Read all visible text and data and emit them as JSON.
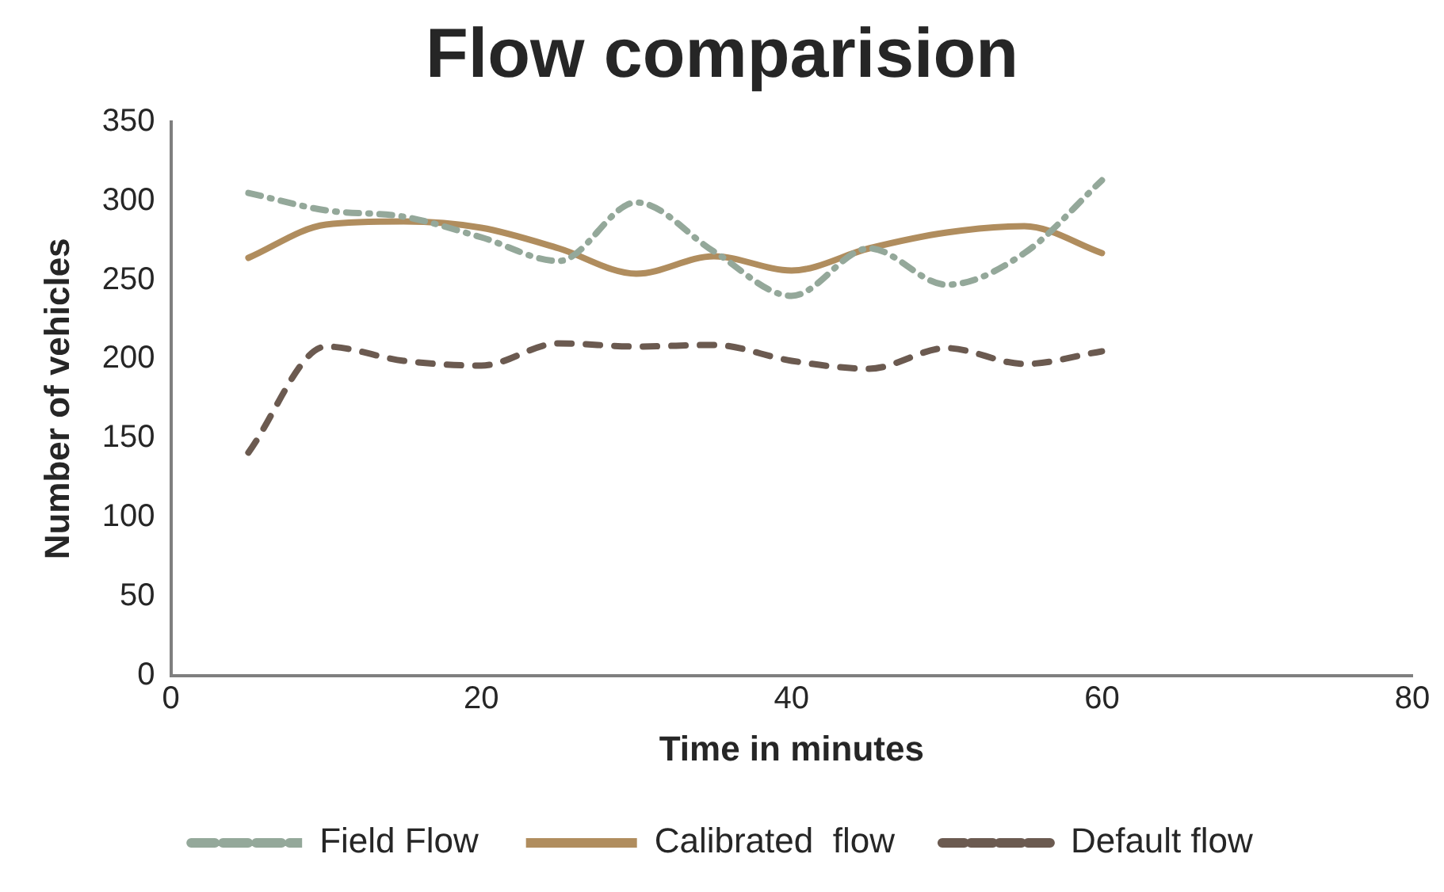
{
  "chart_data": {
    "type": "line",
    "title": "Flow comparision",
    "xlabel": "Time in minutes",
    "ylabel": "Number of vehicles",
    "x": [
      5,
      10,
      15,
      20,
      25,
      30,
      35,
      40,
      45,
      50,
      55,
      60
    ],
    "series": [
      {
        "name": "Field Flow",
        "color": "#94a89a",
        "line_style": "dashed",
        "values": [
          305,
          294,
          290,
          277,
          262,
          299,
          268,
          240,
          270,
          247,
          267,
          313
        ]
      },
      {
        "name": "Calibrated  flow",
        "color": "#b08d5e",
        "line_style": "solid",
        "values": [
          264,
          285,
          287,
          283,
          270,
          254,
          265,
          256,
          270,
          280,
          284,
          267
        ]
      },
      {
        "name": "Default flow",
        "color": "#6b5a50",
        "line_style": "dashed",
        "values": [
          141,
          208,
          199,
          196,
          210,
          208,
          209,
          199,
          194,
          207,
          197,
          205
        ]
      }
    ],
    "xlim": [
      0,
      80
    ],
    "xticks": [
      0,
      20,
      40,
      60,
      80
    ],
    "ylim": [
      0,
      350
    ],
    "yticks": [
      0,
      50,
      100,
      150,
      200,
      250,
      300,
      350
    ],
    "grid": false,
    "legend": "bottom",
    "marker": "none"
  }
}
